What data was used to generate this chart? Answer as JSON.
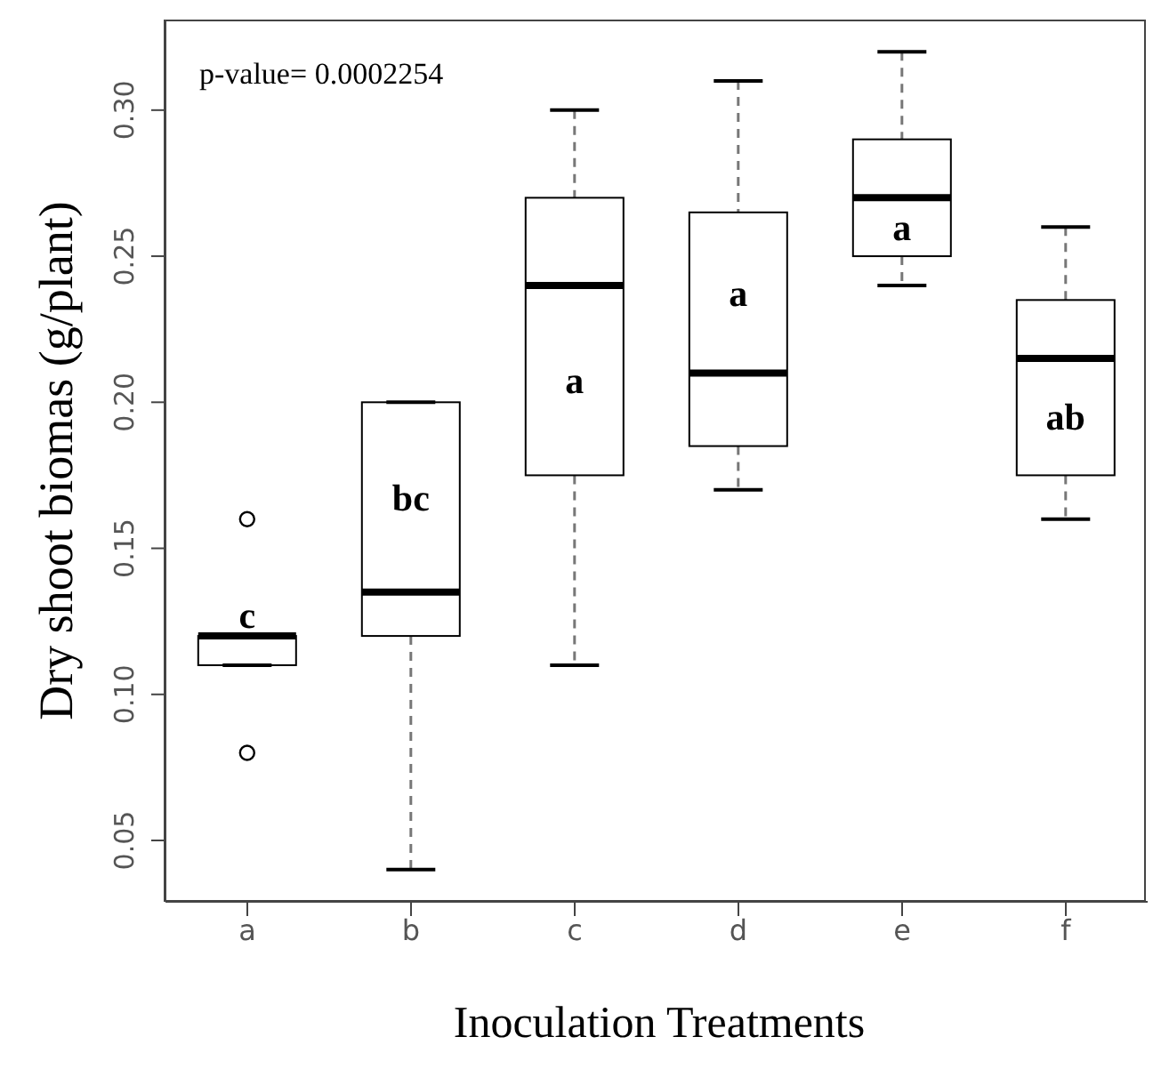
{
  "chart_data": {
    "type": "box",
    "xlabel": "Inoculation Treatments",
    "ylabel": "Dry shoot biomas (g/plant)",
    "categories": [
      "a",
      "b",
      "c",
      "d",
      "e",
      "f"
    ],
    "color": "#000000",
    "boxes": [
      {
        "low": 0.11,
        "q1": 0.11,
        "median": 0.12,
        "q3": 0.12,
        "high": 0.12,
        "outliers": [
          0.16,
          0.08
        ]
      },
      {
        "low": 0.04,
        "q1": 0.12,
        "median": 0.135,
        "q3": 0.2,
        "high": 0.2
      },
      {
        "low": 0.11,
        "q1": 0.175,
        "median": 0.24,
        "q3": 0.27,
        "high": 0.3
      },
      {
        "low": 0.17,
        "q1": 0.185,
        "median": 0.21,
        "q3": 0.265,
        "high": 0.31
      },
      {
        "low": 0.24,
        "q1": 0.25,
        "median": 0.27,
        "q3": 0.29,
        "high": 0.32
      },
      {
        "low": 0.16,
        "q1": 0.175,
        "median": 0.215,
        "q3": 0.235,
        "high": 0.26
      }
    ],
    "ylim": [
      0.029,
      0.331
    ],
    "yticks": [
      {
        "value": 0.05,
        "label": "0.05"
      },
      {
        "value": 0.1,
        "label": "0.10"
      },
      {
        "value": 0.15,
        "label": "0.15"
      },
      {
        "value": 0.2,
        "label": "0.20"
      },
      {
        "value": 0.25,
        "label": "0.25"
      },
      {
        "value": 0.3,
        "label": "0.30"
      }
    ],
    "annotations": [
      "p-value= 0.0002254",
      "c",
      "bc",
      "a",
      "a",
      "a",
      "ab"
    ]
  }
}
